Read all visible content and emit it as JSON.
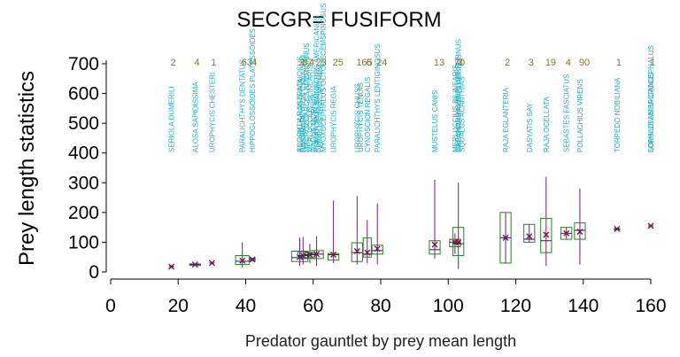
{
  "chart_data": {
    "type": "boxplot",
    "title": "SECGR= FUSIFORM",
    "xlabel": "Predator gauntlet by prey mean length",
    "ylabel": "Prey length statistics",
    "xlim": [
      0,
      160
    ],
    "ylim": [
      0,
      700
    ],
    "xticks": [
      0,
      20,
      40,
      60,
      80,
      100,
      120,
      140,
      160
    ],
    "yticks": [
      0,
      100,
      200,
      300,
      400,
      500,
      600,
      700
    ],
    "colors": {
      "box": "#1a8a1a",
      "whisker": "#7a1a7a",
      "mean": "#8a1040",
      "median": "#1a1a8a",
      "species": "#18b4c8",
      "count": "#8a7a10"
    },
    "groups": [
      {
        "x": 18,
        "species": "SERIOLA DUMERILI",
        "n": "2",
        "mean": 18,
        "median": 18,
        "q1": 16,
        "q3": 20,
        "min": 14,
        "max": 22,
        "w": 0
      },
      {
        "x": 25,
        "species": "ALOSA SAPIDISSIMA",
        "n": "4",
        "mean": 25,
        "median": 25,
        "q1": 22,
        "q3": 27,
        "min": 21,
        "max": 28,
        "w": 4
      },
      {
        "x": 30,
        "species": "UROPHYCIS CHESTERI",
        "n": "1",
        "mean": 30,
        "median": 30,
        "q1": 28,
        "q3": 32,
        "min": 27,
        "max": 33,
        "w": 0
      },
      {
        "x": 39,
        "species": "PARALICHTHYS DENTATUS",
        "n": "63",
        "mean": 38,
        "median": 36,
        "q1": 25,
        "q3": 55,
        "min": 15,
        "max": 100,
        "w": 5
      },
      {
        "x": 42,
        "species": "HIPPOGLOSSOIDES PLATESSOIDES",
        "n": "4",
        "mean": 42,
        "median": 42,
        "q1": 38,
        "q3": 46,
        "min": 36,
        "max": 48,
        "w": 2
      },
      {
        "x": 56,
        "species": "SCOPHTHALMUS AQUOSUS",
        "n": "2",
        "mean": 50,
        "median": 48,
        "q1": 35,
        "q3": 70,
        "min": 20,
        "max": 115,
        "w": 6
      },
      {
        "x": 57,
        "species": "RACHYCENTRON CANADUM",
        "n": "87",
        "mean": 55,
        "median": 55,
        "q1": 45,
        "q3": 68,
        "min": 25,
        "max": 118,
        "w": 4
      },
      {
        "x": 59,
        "species": "MERLUCCIUS BILINEARIS",
        "n": "4",
        "mean": 58,
        "median": 58,
        "q1": 48,
        "q3": 65,
        "min": 30,
        "max": 95,
        "w": 4
      },
      {
        "x": 61,
        "species": "POMATOMUS SALTATRIX",
        "n": "29",
        "mean": 60,
        "median": 60,
        "q1": 45,
        "q3": 72,
        "min": 20,
        "max": 120,
        "w": 5
      },
      {
        "x": 66,
        "species": "UROPHYCIS REGIA",
        "n": "25",
        "mean": 58,
        "median": 58,
        "q1": 40,
        "q3": 62,
        "min": 30,
        "max": 240,
        "w": 4
      },
      {
        "x": 73,
        "species": "UROPHYCIS CHUSS",
        "n": "165",
        "mean": 70,
        "median": 65,
        "q1": 35,
        "q3": 98,
        "min": 25,
        "max": 255,
        "w": 4
      },
      {
        "x": 76,
        "species": "CYNOSCION REGALIS",
        "n": "6",
        "mean": 65,
        "median": 60,
        "q1": 50,
        "q3": 115,
        "min": 30,
        "max": 175,
        "w": 3
      },
      {
        "x": 79,
        "species": "PARALICHTHYS LENTIGINOSUS",
        "n": "24",
        "mean": 78,
        "median": 72,
        "q1": 60,
        "q3": 90,
        "min": 25,
        "max": 230,
        "w": 4
      },
      {
        "x": 96,
        "species": "MUSTELUS CANIS",
        "n": "13",
        "mean": 92,
        "median": 75,
        "q1": 60,
        "q3": 105,
        "min": 45,
        "max": 310,
        "w": 4
      },
      {
        "x": 102,
        "species": "MERLUCCIUS BILINEARIS",
        "n": "70",
        "mean": 100,
        "median": 100,
        "q1": 85,
        "q3": 110,
        "min": 60,
        "max": 130,
        "w": 4
      },
      {
        "x": 103,
        "species": "CARCHARHINUS PLUMBEUS",
        "n": "3",
        "mean": 100,
        "median": 95,
        "q1": 55,
        "q3": 150,
        "min": 10,
        "max": 300,
        "w": 4
      },
      {
        "x": 117,
        "species": "RAJA EGLANTERIA",
        "n": "2",
        "mean": 115,
        "median": 115,
        "q1": 30,
        "q3": 200,
        "min": 30,
        "max": 200,
        "w": 4
      },
      {
        "x": 124,
        "species": "DASYATIS SAY",
        "n": "3",
        "mean": 120,
        "median": 110,
        "q1": 100,
        "q3": 160,
        "min": 100,
        "max": 160,
        "w": 4
      },
      {
        "x": 129,
        "species": "RAJA OCELLATA",
        "n": "19",
        "mean": 125,
        "median": 105,
        "q1": 65,
        "q3": 180,
        "min": 20,
        "max": 320,
        "w": 4
      },
      {
        "x": 135,
        "species": "SEBASTES FASCIATUS",
        "n": "4",
        "mean": 130,
        "median": 130,
        "q1": 110,
        "q3": 150,
        "min": 110,
        "max": 150,
        "w": 4
      },
      {
        "x": 139,
        "species": "POLLACHIUS VIRENS",
        "n": "90",
        "mean": 135,
        "median": 140,
        "q1": 110,
        "q3": 165,
        "min": 25,
        "max": 280,
        "w": 4
      },
      {
        "x": 150,
        "species": "TORPEDO NOBILIANA",
        "n": "1",
        "mean": 145,
        "median": 145,
        "q1": 145,
        "q3": 145,
        "min": 145,
        "max": 145,
        "w": 2
      },
      {
        "x": 160,
        "species": "SOMNIOSUS MICROCEPHALUS",
        "n": "1",
        "mean": 155,
        "median": 155,
        "q1": 155,
        "q3": 155,
        "min": 155,
        "max": 155,
        "w": 0
      }
    ],
    "extra_labels": [
      {
        "x": 56,
        "text": "ANGUILLA ROSTRATA"
      },
      {
        "x": 57,
        "text": "ROSTRATA"
      },
      {
        "x": 58,
        "text": "MACROZOARCES AMERICANUS"
      },
      {
        "x": 60,
        "text": "GADUS MORHUA"
      },
      {
        "x": 61,
        "text": "PSEUDOPLEURONECTES AMERICANUS"
      },
      {
        "x": 62,
        "text": "PEPRILUS TRIACANTHUS"
      },
      {
        "x": 63,
        "text": "MYOXOCEPHALUS OCTODECEMSPINOSUS"
      },
      {
        "x": 74,
        "text": "UROPHYCIS TENUIS"
      },
      {
        "x": 103,
        "text": "MELANOGRAMMUS AEGLEFINUS"
      },
      {
        "x": 104,
        "text": "SQUALUS ACANTHIAS"
      },
      {
        "x": 160,
        "text": "LOPHIUS AMERICANUS"
      }
    ]
  }
}
